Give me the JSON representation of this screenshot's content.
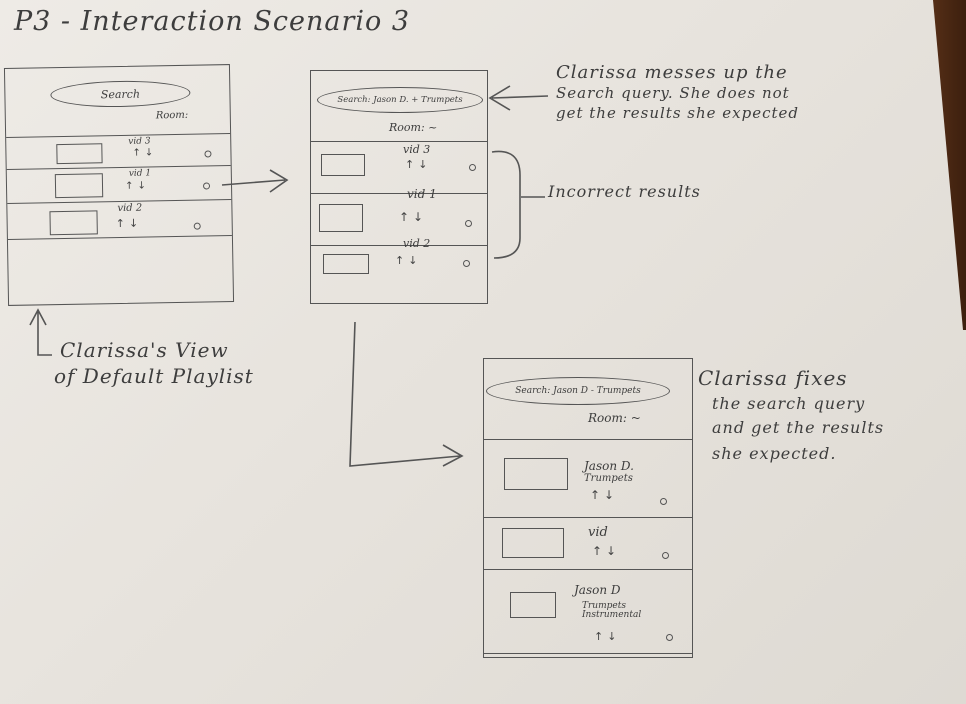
{
  "title": "P3 - Interaction Scenario 3",
  "vote_arrows": "↑↓",
  "screen1": {
    "search_label": "Search",
    "room_label": "Room:",
    "videos": [
      "vid 3",
      "vid 1",
      "vid 2"
    ]
  },
  "screen2": {
    "search_label": "Search: Jason D. + Trumpets",
    "room_label": "Room: ~",
    "videos": [
      "vid 3",
      "vid 1",
      "vid 2"
    ]
  },
  "screen3": {
    "search_label": "Search: Jason D - Trumpets",
    "room_label": "Room: ~",
    "videos": [
      {
        "line1": "Jason D.",
        "line2": "Trumpets"
      },
      {
        "line1": "vid",
        "line2": ""
      },
      {
        "line1": "Jason D",
        "line2": "Trumpets Instrumental"
      }
    ]
  },
  "annotations": {
    "default_view": [
      "Clarissa's View",
      "of Default Playlist"
    ],
    "messes_up": [
      "Clarissa messes up the",
      "Search query. She does not",
      "get the results she expected"
    ],
    "incorrect": "Incorrect results",
    "fixes": [
      "Clarissa fixes",
      "the search query",
      "and get the results",
      "she expected."
    ]
  }
}
